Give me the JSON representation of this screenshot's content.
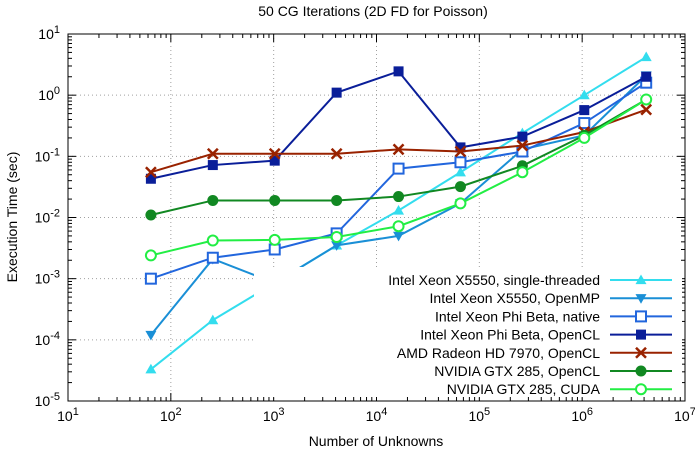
{
  "chart_data": {
    "type": "line",
    "title": "50 CG Iterations (2D FD for Poisson)",
    "xlabel": "Number of Unknowns",
    "ylabel": "Execution Time (sec)",
    "xscale": "log",
    "yscale": "log",
    "xlim": [
      10,
      10000000
    ],
    "ylim": [
      1e-05,
      10
    ],
    "grid": true,
    "legend_position": "bottom-right",
    "x_ticks": [
      {
        "value": 10,
        "base": "10",
        "exp": "1"
      },
      {
        "value": 100,
        "base": "10",
        "exp": "2"
      },
      {
        "value": 1000,
        "base": "10",
        "exp": "3"
      },
      {
        "value": 10000,
        "base": "10",
        "exp": "4"
      },
      {
        "value": 100000,
        "base": "10",
        "exp": "5"
      },
      {
        "value": 1000000,
        "base": "10",
        "exp": "6"
      },
      {
        "value": 10000000,
        "base": "10",
        "exp": "7"
      }
    ],
    "y_ticks": [
      {
        "value": 1e-05,
        "base": "10",
        "exp": "-5"
      },
      {
        "value": 0.0001,
        "base": "10",
        "exp": "-4"
      },
      {
        "value": 0.001,
        "base": "10",
        "exp": "-3"
      },
      {
        "value": 0.01,
        "base": "10",
        "exp": "-2"
      },
      {
        "value": 0.1,
        "base": "10",
        "exp": "-1"
      },
      {
        "value": 1,
        "base": "10",
        "exp": "0"
      },
      {
        "value": 10,
        "base": "10",
        "exp": "1"
      }
    ],
    "x": [
      64,
      256,
      1024,
      4096,
      16384,
      65536,
      262144,
      1048576,
      4194304
    ],
    "series": [
      {
        "name": "Intel Xeon X5550, single-threaded",
        "color": "#33ddee",
        "marker": "triangle-up",
        "values": [
          3.3e-05,
          0.00021,
          0.00085,
          0.0035,
          0.013,
          0.055,
          0.24,
          1.0,
          4.2
        ]
      },
      {
        "name": "Intel Xeon X5550, OpenMP",
        "color": "#1a8fd6",
        "marker": "triangle-down",
        "values": [
          0.00012,
          0.0021,
          0.00085,
          0.0035,
          0.005,
          0.017,
          0.13,
          0.22,
          2.1
        ]
      },
      {
        "name": "Intel Xeon Phi Beta, native",
        "color": "#2266dd",
        "marker": "square-open",
        "values": [
          0.001,
          0.0022,
          0.003,
          0.0055,
          0.063,
          0.08,
          0.12,
          0.35,
          1.6
        ]
      },
      {
        "name": "Intel Xeon Phi Beta, OpenCL",
        "color": "#0a1e99",
        "marker": "square-filled",
        "values": [
          0.043,
          0.072,
          0.085,
          1.1,
          2.45,
          0.14,
          0.21,
          0.57,
          2.0
        ]
      },
      {
        "name": "AMD Radeon HD 7970, OpenCL",
        "color": "#992200",
        "marker": "cross",
        "values": [
          0.055,
          0.11,
          0.11,
          0.11,
          0.13,
          0.12,
          0.15,
          0.25,
          0.58
        ]
      },
      {
        "name": "NVIDIA GTX 285, OpenCL",
        "color": "#118822",
        "marker": "circle-filled",
        "values": [
          0.011,
          0.019,
          0.019,
          0.019,
          0.022,
          0.032,
          0.07,
          0.22,
          0.85
        ]
      },
      {
        "name": "NVIDIA GTX 285, CUDA",
        "color": "#22ee44",
        "marker": "circle-open",
        "values": [
          0.0024,
          0.0042,
          0.0043,
          0.0048,
          0.0072,
          0.017,
          0.055,
          0.2,
          0.85
        ]
      }
    ]
  }
}
